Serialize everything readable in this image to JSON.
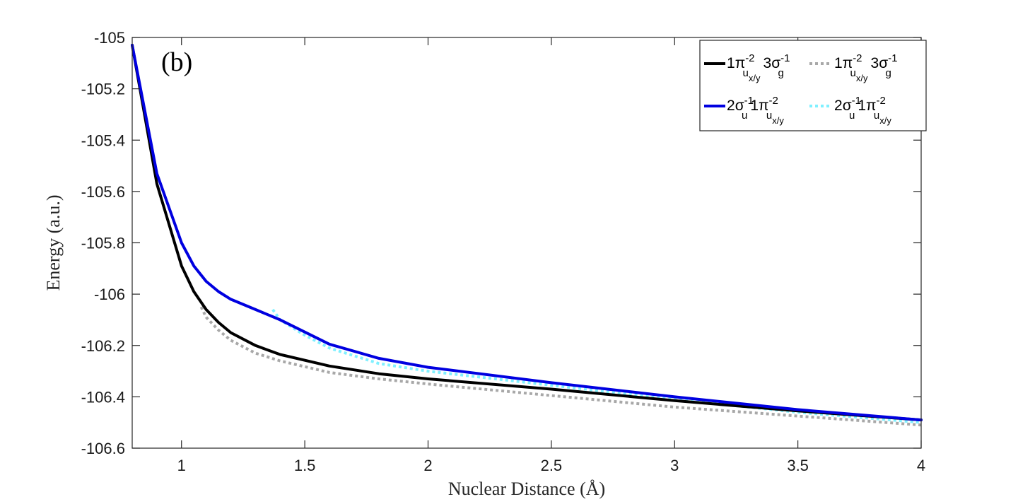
{
  "chart_data": {
    "type": "line",
    "panel_label": "(b)",
    "title": "",
    "xlabel": "Nuclear Distance (Å)",
    "ylabel": "Energy (a.u.)",
    "xlim": [
      0.8,
      4
    ],
    "ylim": [
      -106.6,
      -105
    ],
    "xticks": [
      1,
      1.5,
      2,
      2.5,
      3,
      3.5,
      4
    ],
    "yticks": [
      -105,
      -105.2,
      -105.4,
      -105.6,
      -105.8,
      -106,
      -106.2,
      -106.4,
      -106.6
    ],
    "grid": false,
    "legend_position": "top-right",
    "series": [
      {
        "legend_label": {
          "lead": "1",
          "sym1": "π",
          "sup1": "-2",
          "sub1": "u",
          "subsub1": "x/y",
          "num2": "3",
          "sym2": "σ",
          "sup2": "-1",
          "sub2": "g"
        },
        "color": "#000000",
        "style": "solid",
        "x": [
          0.8,
          0.9,
          1.0,
          1.05,
          1.1,
          1.15,
          1.2,
          1.3,
          1.4,
          1.6,
          1.8,
          2.0,
          2.5,
          3.0,
          3.5,
          4.0
        ],
        "y": [
          -105.03,
          -105.57,
          -105.89,
          -105.99,
          -106.06,
          -106.11,
          -106.15,
          -106.2,
          -106.235,
          -106.28,
          -106.31,
          -106.33,
          -106.37,
          -106.415,
          -106.455,
          -106.49
        ]
      },
      {
        "legend_label": {
          "lead": "1",
          "sym1": "π",
          "sup1": "-2",
          "sub1": "u",
          "subsub1": "x/y",
          "num2": "3",
          "sym2": "σ",
          "sup2": "-1",
          "sub2": "g"
        },
        "color": "#a8a8a8",
        "style": "dotted",
        "x": [
          1.08,
          1.1,
          1.15,
          1.2,
          1.3,
          1.4,
          1.6,
          1.8,
          2.0,
          2.5,
          3.0,
          3.5,
          4.0
        ],
        "y": [
          -106.05,
          -106.09,
          -106.14,
          -106.18,
          -106.23,
          -106.26,
          -106.305,
          -106.33,
          -106.35,
          -106.395,
          -106.44,
          -106.475,
          -106.51
        ]
      },
      {
        "legend_label": {
          "lead": "2",
          "sym1": "σ",
          "sup1": "-1",
          "sub1": "u",
          "subsub1": "",
          "num2": "1",
          "sym2": "π",
          "sup2": "-2",
          "sub2": "u",
          "subsub2": "x/y"
        },
        "color": "#0000e0",
        "style": "solid",
        "x": [
          0.8,
          0.9,
          1.0,
          1.05,
          1.1,
          1.15,
          1.2,
          1.3,
          1.4,
          1.6,
          1.8,
          2.0,
          2.5,
          3.0,
          3.5,
          4.0
        ],
        "y": [
          -105.03,
          -105.53,
          -105.8,
          -105.89,
          -105.95,
          -105.99,
          -106.02,
          -106.06,
          -106.1,
          -106.195,
          -106.25,
          -106.285,
          -106.345,
          -106.4,
          -106.45,
          -106.49
        ]
      },
      {
        "legend_label": {
          "lead": "2",
          "sym1": "σ",
          "sup1": "-1",
          "sub1": "u",
          "subsub1": "",
          "num2": "1",
          "sym2": "π",
          "sup2": "-2",
          "sub2": "u",
          "subsub2": "x/y"
        },
        "color": "#80f0ff",
        "style": "dotted",
        "x": [
          1.37,
          1.4,
          1.5,
          1.6,
          1.8,
          2.0,
          2.5,
          3.0,
          3.5,
          4.0
        ],
        "y": [
          -106.06,
          -106.1,
          -106.16,
          -106.21,
          -106.27,
          -106.3,
          -106.355,
          -106.41,
          -106.46,
          -106.5
        ]
      }
    ]
  }
}
